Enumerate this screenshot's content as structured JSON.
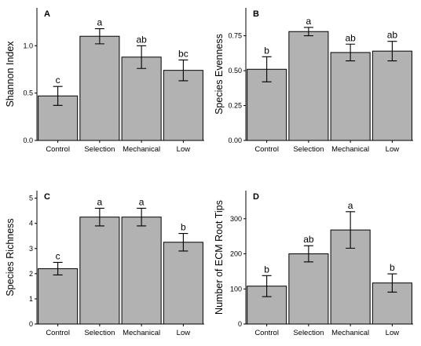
{
  "chart_data": [
    {
      "type": "bar",
      "panel": "A",
      "ylabel": "Shannon Index",
      "categories": [
        "Control",
        "Selection",
        "Mechanical",
        "Low"
      ],
      "values": [
        0.47,
        1.1,
        0.88,
        0.74
      ],
      "errors": [
        0.1,
        0.08,
        0.12,
        0.11
      ],
      "significance": [
        "c",
        "a",
        "ab",
        "bc"
      ],
      "ylim": [
        0,
        1.4
      ],
      "yticks": [
        0.0,
        0.5,
        1.0
      ],
      "ytick_labels": [
        "0.0",
        "0.5",
        "1.0"
      ]
    },
    {
      "type": "bar",
      "panel": "B",
      "ylabel": "Species Evenness",
      "categories": [
        "Control",
        "Selection",
        "Mechanical",
        "Low"
      ],
      "values": [
        0.51,
        0.78,
        0.63,
        0.64
      ],
      "errors": [
        0.09,
        0.03,
        0.06,
        0.07
      ],
      "significance": [
        "b",
        "a",
        "ab",
        "ab"
      ],
      "ylim": [
        0,
        0.95
      ],
      "yticks": [
        0.0,
        0.25,
        0.5,
        0.75
      ],
      "ytick_labels": [
        "0.00",
        "0.25",
        "0.50",
        "0.75"
      ]
    },
    {
      "type": "bar",
      "panel": "C",
      "ylabel": "Species Richness",
      "categories": [
        "Control",
        "Selection",
        "Mechanical",
        "Low"
      ],
      "values": [
        2.2,
        4.25,
        4.25,
        3.25
      ],
      "errors": [
        0.25,
        0.35,
        0.35,
        0.35
      ],
      "significance": [
        "c",
        "a",
        "a",
        "b"
      ],
      "ylim": [
        0,
        5.3
      ],
      "yticks": [
        0,
        1,
        2,
        3,
        4,
        5
      ],
      "ytick_labels": [
        "0",
        "1",
        "2",
        "3",
        "4",
        "5"
      ]
    },
    {
      "type": "bar",
      "panel": "D",
      "ylabel": "Number of ECM Root Tips",
      "categories": [
        "Control",
        "Selection",
        "Mechanical",
        "Low"
      ],
      "values": [
        108,
        200,
        268,
        117
      ],
      "errors": [
        30,
        23,
        52,
        26
      ],
      "significance": [
        "b",
        "ab",
        "a",
        "b"
      ],
      "ylim": [
        0,
        380
      ],
      "yticks": [
        0,
        100,
        200,
        300
      ],
      "ytick_labels": [
        "0",
        "100",
        "200",
        "300"
      ]
    }
  ]
}
